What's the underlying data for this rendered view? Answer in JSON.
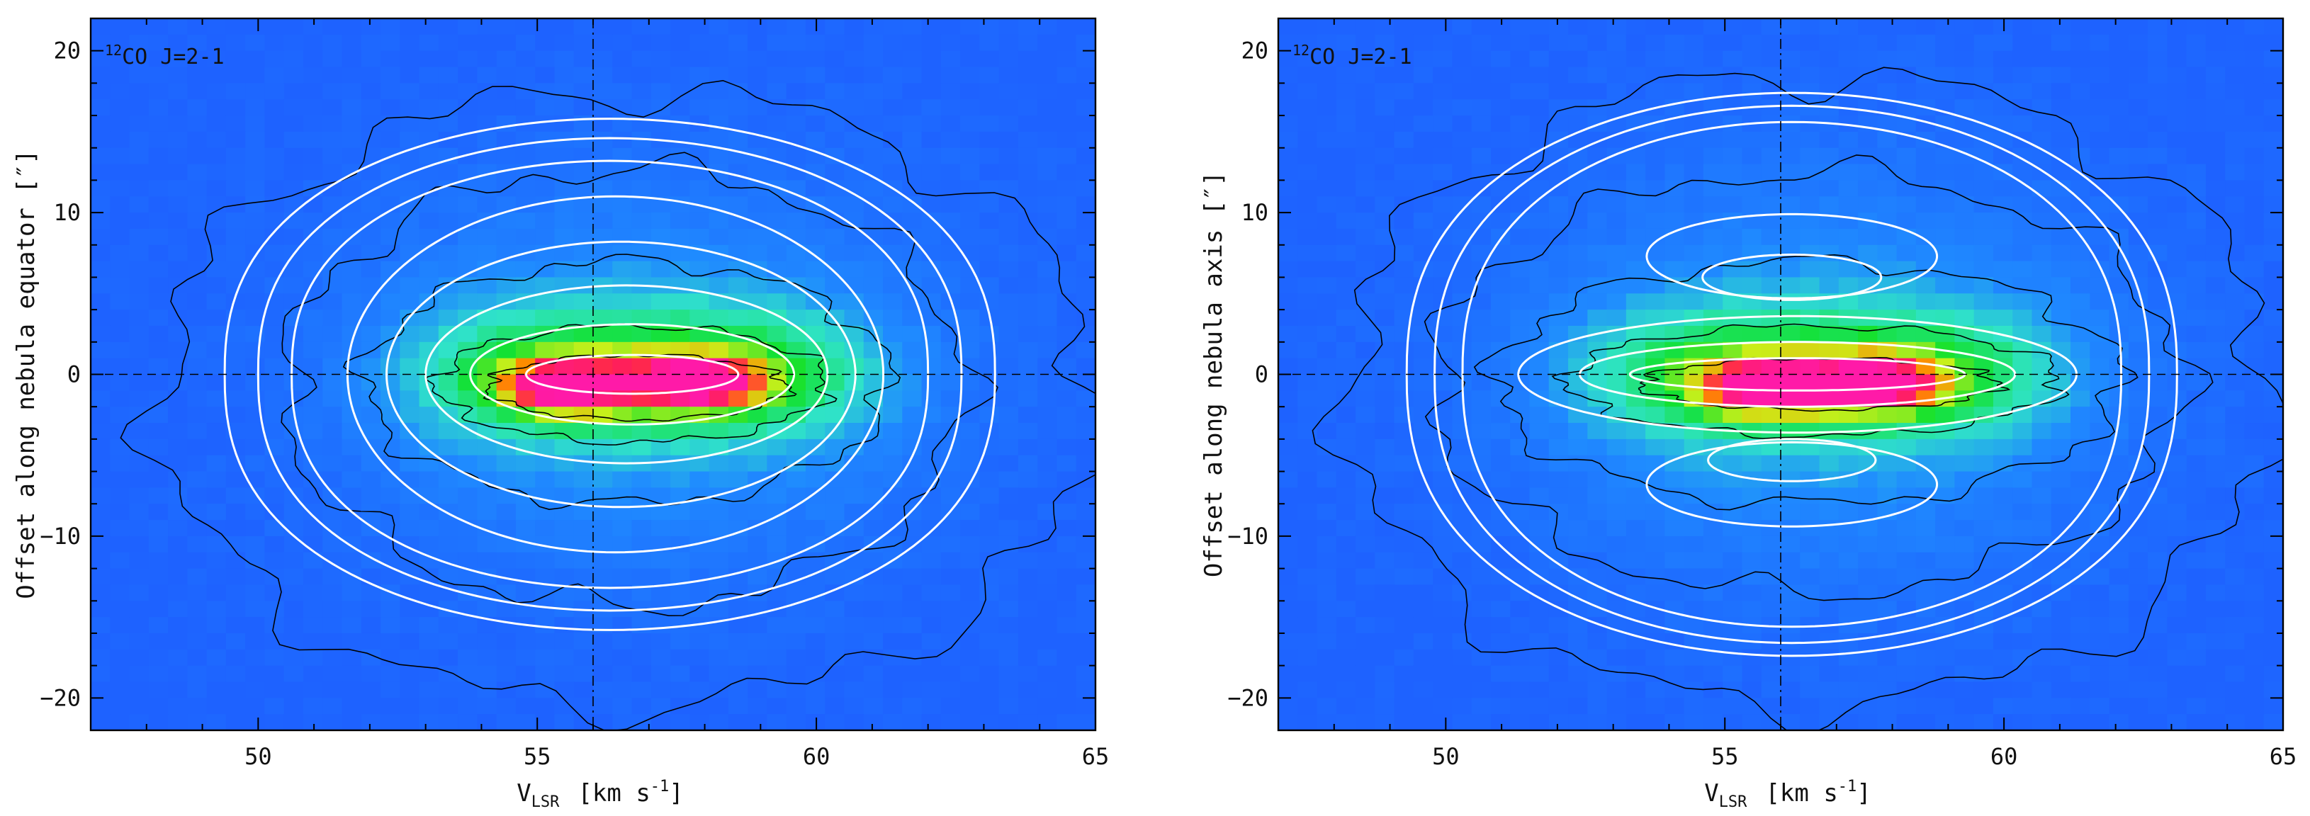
{
  "colors": {
    "background_low": "#1e62ff",
    "emission_mid": "#2fe3c8",
    "emission_high": "#12e12e",
    "peak_warm": "#ff8a00",
    "peak_hot": "#ff1f55",
    "peak_core": "#ff1aa8",
    "observed_contours": "#000000",
    "model_contours": "#ffffff"
  },
  "chart_data": [
    {
      "type": "heatmap",
      "panel": "left",
      "label_iso": "12",
      "label_main": "CO J=2-1",
      "xlabel_main": "V",
      "xlabel_sub": "LSR",
      "xlabel_units": "[km s",
      "xlabel_exp": "-1",
      "xlabel_close": "]",
      "ylabel": "Offset along nebula equator [″]",
      "xlim": [
        47,
        65
      ],
      "ylim": [
        -22,
        22
      ],
      "xticks": [
        50,
        55,
        60,
        65
      ],
      "yticks": [
        -20,
        -10,
        0,
        10,
        20
      ],
      "grid": false,
      "reference_lines": {
        "x": 56,
        "y": 0
      },
      "emission_model": {
        "center_velocity": 56.9,
        "center_offset": 0,
        "peaks": [
          {
            "velocity": 55.5,
            "offset": -0.8
          },
          {
            "velocity": 57.9,
            "offset": -0.5
          }
        ],
        "outer_velocity_halfwidth": 6.8,
        "outer_offset_halfwidth": 16
      },
      "model_contours_ellipses": [
        {
          "velocity_center": 56.3,
          "offset_center": 0,
          "velocity_halfwidth": 6.9,
          "offset_halfwidth": 15.8
        },
        {
          "velocity_center": 56.3,
          "offset_center": 0,
          "velocity_halfwidth": 6.3,
          "offset_halfwidth": 14.6
        },
        {
          "velocity_center": 56.3,
          "offset_center": 0,
          "velocity_halfwidth": 5.7,
          "offset_halfwidth": 13.2
        },
        {
          "velocity_center": 56.4,
          "offset_center": 0,
          "velocity_halfwidth": 4.8,
          "offset_halfwidth": 11.0
        },
        {
          "velocity_center": 56.5,
          "offset_center": 0,
          "velocity_halfwidth": 4.2,
          "offset_halfwidth": 8.2
        },
        {
          "velocity_center": 56.6,
          "offset_center": 0,
          "velocity_halfwidth": 3.6,
          "offset_halfwidth": 5.5
        },
        {
          "velocity_center": 56.7,
          "offset_center": 0,
          "velocity_halfwidth": 2.9,
          "offset_halfwidth": 3.1
        },
        {
          "velocity_center": 56.7,
          "offset_center": 0,
          "velocity_halfwidth": 1.9,
          "offset_halfwidth": 1.2
        }
      ],
      "observed_contours_ellipses": [
        {
          "velocity_center": 56.6,
          "offset_center": -1.5,
          "velocity_halfwidth": 8.4,
          "offset_halfwidth": 19.0
        },
        {
          "velocity_center": 56.6,
          "offset_center": -0.8,
          "velocity_halfwidth": 6.1,
          "offset_halfwidth": 13.5
        },
        {
          "velocity_center": 56.6,
          "offset_center": -0.5,
          "velocity_halfwidth": 4.7,
          "offset_halfwidth": 7.5
        },
        {
          "velocity_center": 56.7,
          "offset_center": -0.6,
          "velocity_halfwidth": 3.5,
          "offset_halfwidth": 3.6
        },
        {
          "velocity_center": 56.8,
          "offset_center": -0.8,
          "velocity_halfwidth": 2.7,
          "offset_halfwidth": 2.0
        }
      ]
    },
    {
      "type": "heatmap",
      "panel": "right",
      "label_iso": "12",
      "label_main": "CO J=2-1",
      "xlabel_main": "V",
      "xlabel_sub": "LSR",
      "xlabel_units": "[km s",
      "xlabel_exp": "-1",
      "xlabel_close": "]",
      "ylabel": "Offset along nebula axis [″]",
      "xlim": [
        47,
        65
      ],
      "ylim": [
        -22,
        22
      ],
      "xticks": [
        50,
        55,
        60,
        65
      ],
      "yticks": [
        -20,
        -10,
        0,
        10,
        20
      ],
      "grid": false,
      "reference_lines": {
        "x": 56,
        "y": 0
      },
      "emission_model": {
        "center_velocity": 56.7,
        "center_offset": 0,
        "peaks": [
          {
            "velocity": 55.7,
            "offset": -0.8
          },
          {
            "velocity": 57.7,
            "offset": -0.6
          }
        ],
        "outer_velocity_halfwidth": 6.9,
        "outer_offset_halfwidth": 17
      },
      "model_contours_ellipses": [
        {
          "velocity_center": 56.2,
          "offset_center": 0,
          "velocity_halfwidth": 6.9,
          "offset_halfwidth": 17.4
        },
        {
          "velocity_center": 56.2,
          "offset_center": 0,
          "velocity_halfwidth": 6.4,
          "offset_halfwidth": 16.6
        },
        {
          "velocity_center": 56.2,
          "offset_center": 0,
          "velocity_halfwidth": 5.9,
          "offset_halfwidth": 15.6
        },
        {
          "velocity_center": 56.3,
          "offset_center": 0,
          "velocity_halfwidth": 5.0,
          "offset_halfwidth": 3.6
        },
        {
          "velocity_center": 56.3,
          "offset_center": 0,
          "velocity_halfwidth": 3.9,
          "offset_halfwidth": 2.0
        },
        {
          "velocity_center": 56.3,
          "offset_center": 0,
          "velocity_halfwidth": 3.0,
          "offset_halfwidth": 1.0
        },
        {
          "velocity_center": 56.2,
          "offset_center": 7.3,
          "velocity_halfwidth": 2.6,
          "offset_halfwidth": 2.6
        },
        {
          "velocity_center": 56.2,
          "offset_center": 6.0,
          "velocity_halfwidth": 1.6,
          "offset_halfwidth": 1.4
        },
        {
          "velocity_center": 56.2,
          "offset_center": -6.8,
          "velocity_halfwidth": 2.6,
          "offset_halfwidth": 2.6
        },
        {
          "velocity_center": 56.2,
          "offset_center": -5.3,
          "velocity_halfwidth": 1.5,
          "offset_halfwidth": 1.3
        }
      ],
      "observed_contours_ellipses": [
        {
          "velocity_center": 56.5,
          "offset_center": -1.0,
          "velocity_halfwidth": 8.3,
          "offset_halfwidth": 19.5
        },
        {
          "velocity_center": 56.5,
          "offset_center": -0.5,
          "velocity_halfwidth": 6.7,
          "offset_halfwidth": 13.0
        },
        {
          "velocity_center": 56.5,
          "offset_center": -0.5,
          "velocity_halfwidth": 5.6,
          "offset_halfwidth": 7.5
        },
        {
          "velocity_center": 56.6,
          "offset_center": -0.4,
          "velocity_halfwidth": 4.4,
          "offset_halfwidth": 3.4
        },
        {
          "velocity_center": 56.7,
          "offset_center": -0.6,
          "velocity_halfwidth": 3.2,
          "offset_halfwidth": 1.6
        }
      ]
    }
  ]
}
